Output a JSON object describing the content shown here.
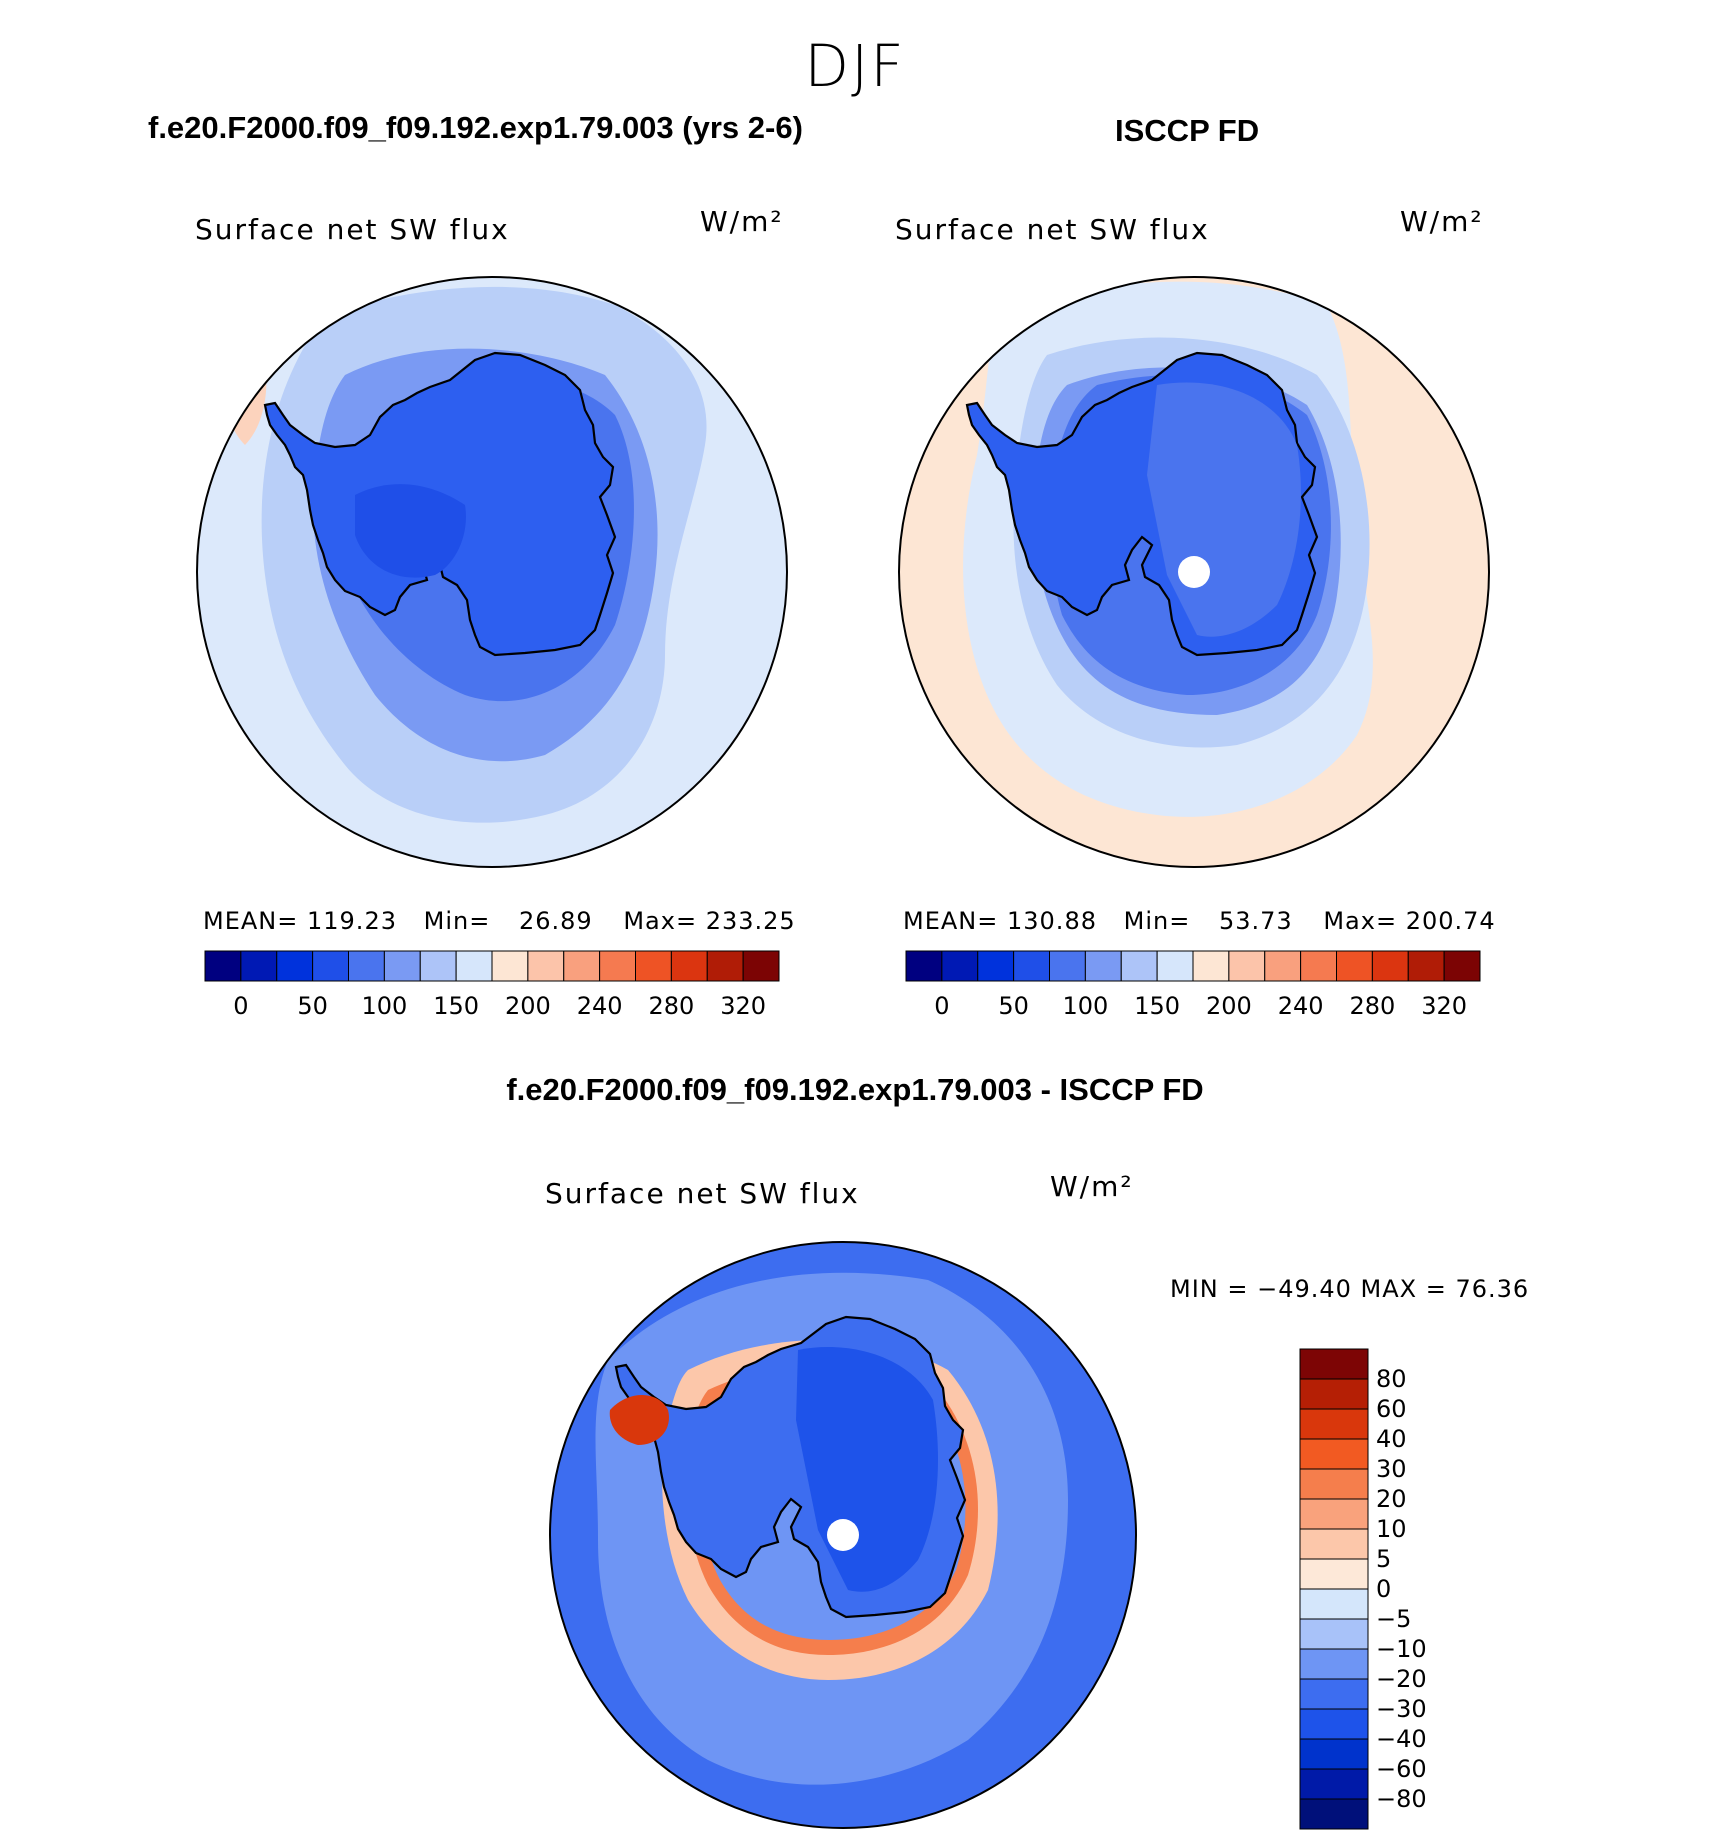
{
  "season_title": "DJF",
  "colors": {
    "abs_scale": [
      "#000080",
      "#0019b4",
      "#0032dc",
      "#1f4fe8",
      "#4a74ee",
      "#7a9af3",
      "#adc4f8",
      "#d6e6fb",
      "#fde6d4",
      "#fcc4aa",
      "#f9a07e",
      "#f57a50",
      "#ee5325",
      "#db3510",
      "#b01c06",
      "#7c0404"
    ],
    "diff_scale": [
      "#00107a",
      "#001aa8",
      "#0033cc",
      "#1e53ea",
      "#3d6df0",
      "#6e95f4",
      "#a8c2f9",
      "#d4e6fb",
      "#fde8d8",
      "#fcc7aa",
      "#f9a27c",
      "#f57e4c",
      "#f25a22",
      "#d9370c",
      "#b51f05",
      "#7d0505"
    ],
    "land": "#2d5ff0",
    "ocean": "#dce9fb",
    "ring_mid": "#b9cff8",
    "coast": "#000000"
  },
  "panel_a": {
    "case_title": "f.e20.F2000.f09_f09.192.exp1.79.003 (yrs 2-6)",
    "plot_label": "Surface net SW flux",
    "units": "W/m²",
    "stats": {
      "mean_label": "MEAN=",
      "mean": "119.23",
      "min_label": "Min=",
      "min": "26.89",
      "max_label": "Max=",
      "max": "233.25"
    },
    "colorbar_ticks": [
      "0",
      "50",
      "100",
      "150",
      "200",
      "240",
      "280",
      "320"
    ]
  },
  "panel_b": {
    "case_title": "ISCCP FD",
    "plot_label": "Surface net SW flux",
    "units": "W/m²",
    "stats": {
      "mean_label": "MEAN=",
      "mean": "130.88",
      "min_label": "Min=",
      "min": "53.73",
      "max_label": "Max=",
      "max": "200.74"
    },
    "colorbar_ticks": [
      "0",
      "50",
      "100",
      "150",
      "200",
      "240",
      "280",
      "320"
    ]
  },
  "panel_diff": {
    "case_title": "f.e20.F2000.f09_f09.192.exp1.79.003 - ISCCP FD",
    "plot_label": "Surface net SW flux",
    "units": "W/m²",
    "minmax_text": "MIN = −49.40 MAX =   76.36",
    "colorbar_ticks": [
      "80",
      "60",
      "40",
      "30",
      "20",
      "10",
      "5",
      "0",
      "−5",
      "−10",
      "−20",
      "−30",
      "−40",
      "−60",
      "−80"
    ]
  }
}
